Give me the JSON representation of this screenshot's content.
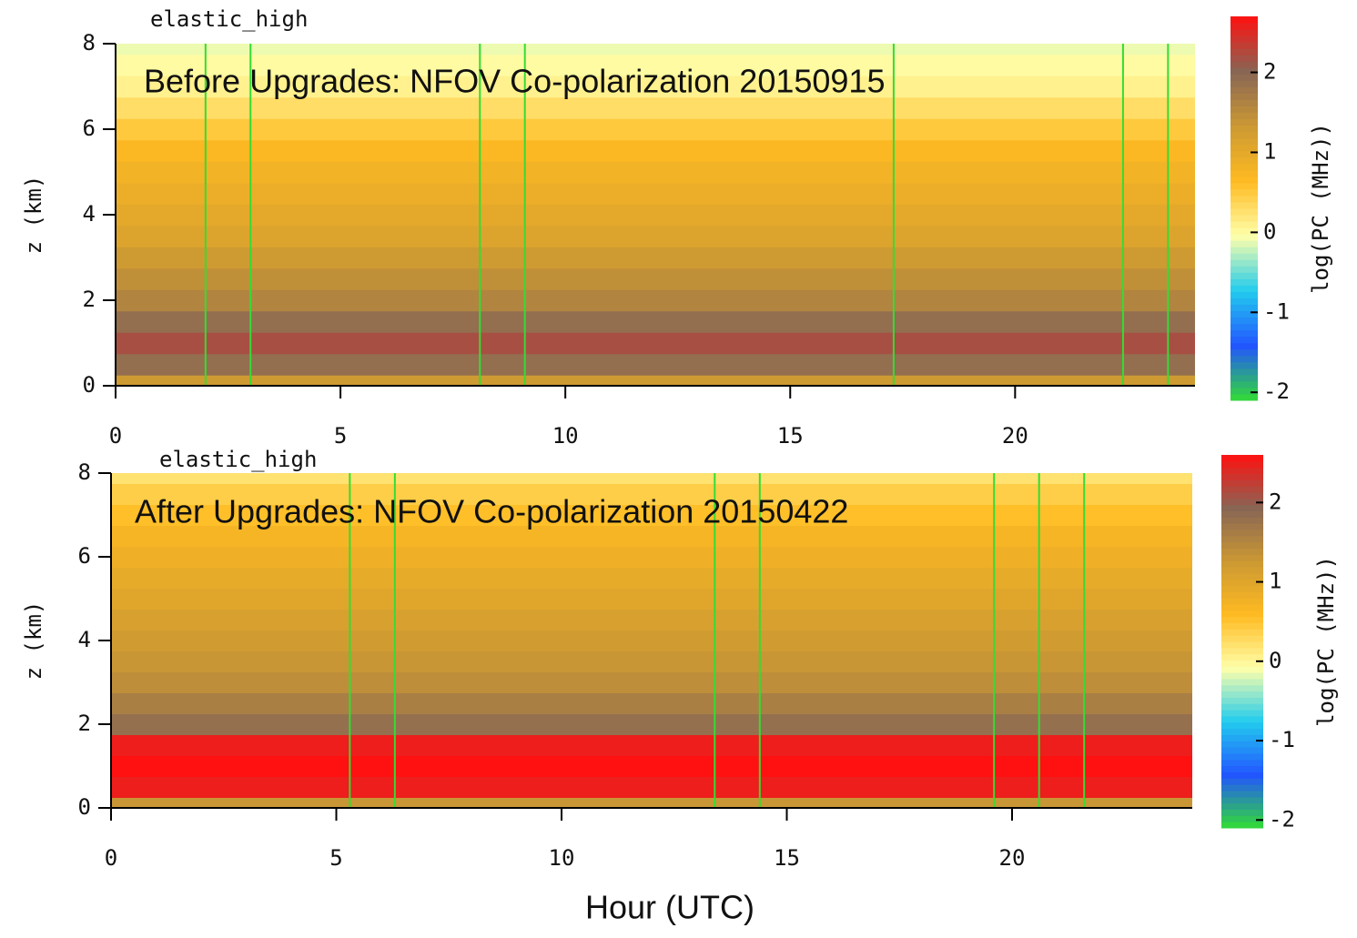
{
  "chart_data": [
    {
      "type": "heatmap",
      "title": "elastic_high",
      "annotation": "Before Upgrades: NFOV Co-polarization 20150915",
      "ylabel": "z (km)",
      "xlim": [
        0,
        24
      ],
      "xticks": [
        0,
        5,
        10,
        15,
        20
      ],
      "ylim": [
        0,
        8
      ],
      "yticks": [
        0,
        2,
        4,
        6,
        8
      ],
      "y": [
        0,
        0.5,
        1,
        1.5,
        2,
        2.5,
        3,
        3.5,
        4,
        4.5,
        5,
        5.5,
        6,
        6.5,
        7,
        7.5,
        8
      ],
      "values": [
        1.3,
        1.9,
        2.2,
        1.9,
        1.6,
        1.45,
        1.3,
        1.1,
        1.0,
        0.9,
        0.8,
        0.7,
        0.5,
        0.3,
        0.1,
        0.0,
        -0.1
      ],
      "clim": [
        -2.1,
        2.7
      ],
      "cticks": [
        -2,
        -1,
        0,
        1,
        2
      ],
      "colorbar_label": "log(PC (MHz))",
      "colormap": [
        "#33dd33",
        "#2255ff",
        "#22ccee",
        "#ffffaa",
        "#ffbb22",
        "#cc9933",
        "#886655",
        "#ff1111"
      ],
      "vlines": {
        "color": "#33dd33",
        "x": [
          2,
          3,
          8.1,
          9.1,
          17.3,
          22.4,
          23.4
        ]
      }
    },
    {
      "type": "heatmap",
      "title": "elastic_high",
      "annotation": "After Upgrades: NFOV Co-polarization 20150422",
      "ylabel": "z (km)",
      "xlabel": "Hour (UTC)",
      "xlim": [
        0,
        24
      ],
      "xticks": [
        0,
        5,
        10,
        15,
        20
      ],
      "ylim": [
        0,
        8
      ],
      "yticks": [
        0,
        2,
        4,
        6,
        8
      ],
      "y": [
        0,
        0.5,
        1,
        1.5,
        2,
        2.5,
        3,
        3.5,
        4,
        4.5,
        5,
        5.5,
        6,
        6.5,
        7,
        7.5,
        8
      ],
      "values": [
        1.3,
        2.5,
        2.6,
        2.5,
        1.8,
        1.6,
        1.4,
        1.3,
        1.2,
        1.1,
        1.0,
        0.9,
        0.8,
        0.7,
        0.55,
        0.4,
        0.2
      ],
      "clim": [
        -2.1,
        2.6
      ],
      "cticks": [
        -2,
        -1,
        0,
        1,
        2
      ],
      "colorbar_label": "log(PC (MHz))",
      "colormap": [
        "#33dd33",
        "#2255ff",
        "#22ccee",
        "#ffffaa",
        "#ffbb22",
        "#cc9933",
        "#886655",
        "#ff1111"
      ],
      "vlines": {
        "color": "#33dd33",
        "x": [
          5.3,
          6.3,
          13.4,
          14.4,
          19.6,
          20.6,
          21.6
        ]
      }
    }
  ]
}
